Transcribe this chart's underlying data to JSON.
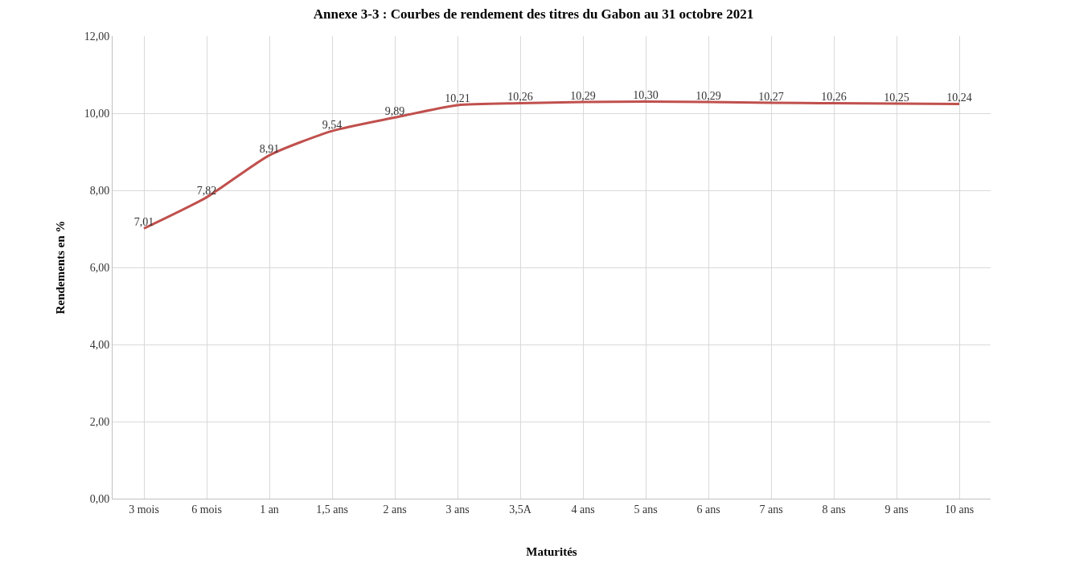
{
  "chart_data": {
    "type": "line",
    "title": "Annexe 3-3 : Courbes de rendement des titres du Gabon au 31 octobre 2021",
    "xlabel": "Maturités",
    "ylabel": "Rendements en %",
    "categories": [
      "3 mois",
      "6 mois",
      "1 an",
      "1,5 ans",
      "2 ans",
      "3 ans",
      "3,5A",
      "4 ans",
      "5 ans",
      "6 ans",
      "7 ans",
      "8 ans",
      "9 ans",
      "10 ans"
    ],
    "series": [
      {
        "color": "#c0504d",
        "values": [
          7.01,
          7.82,
          8.91,
          9.54,
          9.89,
          10.21,
          10.26,
          10.29,
          10.3,
          10.29,
          10.27,
          10.26,
          10.25,
          10.24
        ],
        "value_labels": [
          "7,01",
          "7,82",
          "8,91",
          "9,54",
          "9,89",
          "10,21",
          "10,26",
          "10,29",
          "10,30",
          "10,29",
          "10,27",
          "10,26",
          "10,25",
          "10,24"
        ]
      }
    ],
    "ylim": [
      0,
      12
    ],
    "yticks": [
      {
        "value": 0,
        "label": "0,00"
      },
      {
        "value": 2,
        "label": "2,00"
      },
      {
        "value": 4,
        "label": "4,00"
      },
      {
        "value": 6,
        "label": "6,00"
      },
      {
        "value": 8,
        "label": "8,00"
      },
      {
        "value": 10,
        "label": "10,00"
      },
      {
        "value": 12,
        "label": "12,00"
      }
    ],
    "grid": true,
    "marker": "none",
    "line_style": "solid"
  }
}
